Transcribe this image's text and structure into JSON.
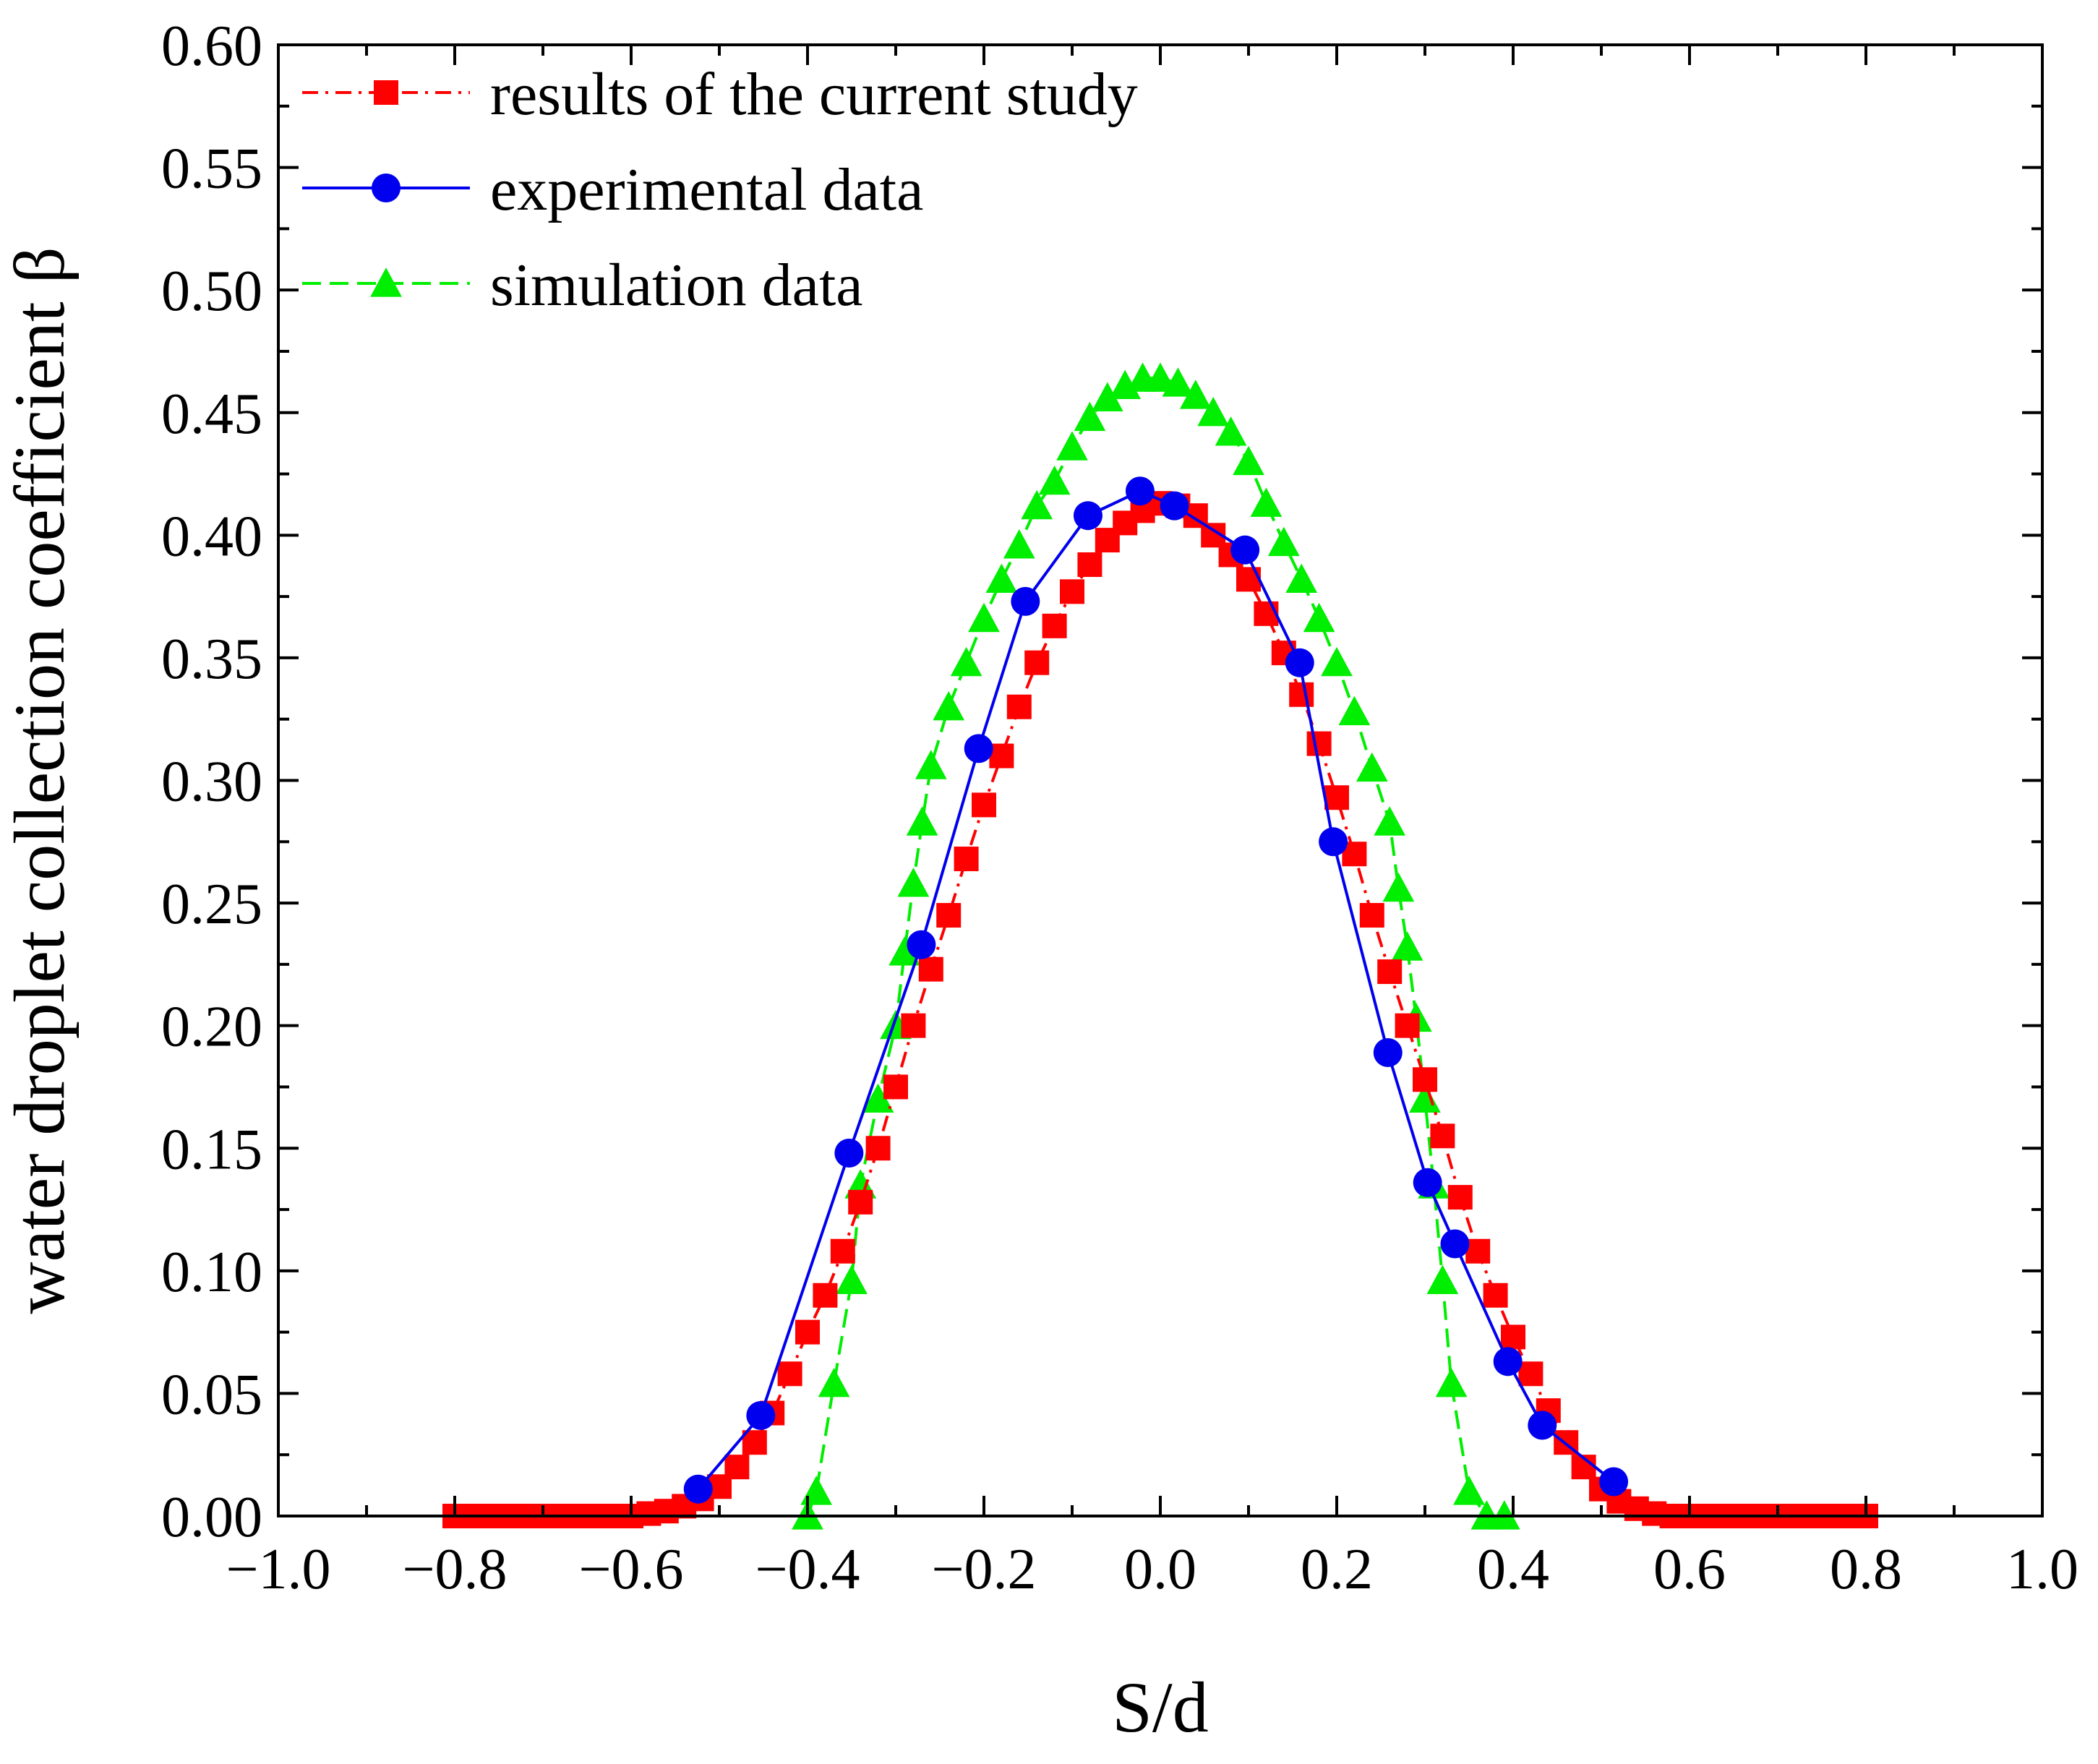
{
  "chart_data": {
    "type": "line",
    "title": "",
    "xlabel": "S/d",
    "ylabel": "water droplet collection coefficient β",
    "xlim": [
      -1.0,
      1.0
    ],
    "ylim": [
      0.0,
      0.6
    ],
    "xticks": [
      -1.0,
      -0.8,
      -0.6,
      -0.4,
      -0.2,
      0.0,
      0.2,
      0.4,
      0.6,
      0.8,
      1.0
    ],
    "xtick_labels": [
      "−1.0",
      "−0.8",
      "−0.6",
      "−0.4",
      "−0.2",
      "0.0",
      "0.2",
      "0.4",
      "0.6",
      "0.8",
      "1.0"
    ],
    "yticks": [
      0.0,
      0.05,
      0.1,
      0.15,
      0.2,
      0.25,
      0.3,
      0.35,
      0.4,
      0.45,
      0.5,
      0.55,
      0.6
    ],
    "ytick_labels": [
      "0.00",
      "0.05",
      "0.10",
      "0.15",
      "0.20",
      "0.25",
      "0.30",
      "0.35",
      "0.40",
      "0.45",
      "0.50",
      "0.55",
      "0.60"
    ],
    "grid": false,
    "legend_position": "top-left",
    "series": [
      {
        "name": "results of the current study",
        "color": "#ff0000",
        "marker": "square",
        "line_style": "dash-dot",
        "x": [
          -0.8,
          -0.78,
          -0.76,
          -0.74,
          -0.72,
          -0.7,
          -0.68,
          -0.66,
          -0.64,
          -0.62,
          -0.6,
          -0.58,
          -0.56,
          -0.54,
          -0.52,
          -0.5,
          -0.48,
          -0.46,
          -0.44,
          -0.42,
          -0.4,
          -0.38,
          -0.36,
          -0.34,
          -0.32,
          -0.3,
          -0.28,
          -0.26,
          -0.24,
          -0.22,
          -0.2,
          -0.18,
          -0.16,
          -0.14,
          -0.12,
          -0.1,
          -0.08,
          -0.06,
          -0.04,
          -0.02,
          0.0,
          0.02,
          0.04,
          0.06,
          0.08,
          0.1,
          0.12,
          0.14,
          0.16,
          0.18,
          0.2,
          0.22,
          0.24,
          0.26,
          0.28,
          0.3,
          0.32,
          0.34,
          0.36,
          0.38,
          0.4,
          0.42,
          0.44,
          0.46,
          0.48,
          0.5,
          0.52,
          0.54,
          0.56,
          0.58,
          0.6,
          0.62,
          0.64,
          0.66,
          0.68,
          0.7,
          0.72,
          0.74,
          0.76,
          0.78,
          0.8
        ],
        "y": [
          0.0,
          0.0,
          0.0,
          0.0,
          0.0,
          0.0,
          0.0,
          0.0,
          0.0,
          0.0,
          0.0,
          0.001,
          0.002,
          0.004,
          0.007,
          0.012,
          0.02,
          0.03,
          0.042,
          0.058,
          0.075,
          0.09,
          0.108,
          0.128,
          0.15,
          0.175,
          0.2,
          0.223,
          0.245,
          0.268,
          0.29,
          0.31,
          0.33,
          0.348,
          0.363,
          0.377,
          0.388,
          0.398,
          0.405,
          0.41,
          0.413,
          0.412,
          0.408,
          0.4,
          0.392,
          0.382,
          0.368,
          0.352,
          0.335,
          0.315,
          0.293,
          0.27,
          0.245,
          0.222,
          0.2,
          0.178,
          0.155,
          0.13,
          0.108,
          0.09,
          0.073,
          0.058,
          0.043,
          0.03,
          0.02,
          0.011,
          0.006,
          0.003,
          0.001,
          0.0,
          0.0,
          0.0,
          0.0,
          0.0,
          0.0,
          0.0,
          0.0,
          0.0,
          0.0,
          0.0,
          0.0
        ]
      },
      {
        "name": "experimental data",
        "color": "#0000ee",
        "marker": "circle",
        "line_style": "solid",
        "x": [
          -0.524,
          -0.453,
          -0.353,
          -0.271,
          -0.206,
          -0.153,
          -0.082,
          -0.023,
          0.016,
          0.096,
          0.158,
          0.196,
          0.258,
          0.303,
          0.334,
          0.394,
          0.433,
          0.514
        ],
        "y": [
          0.011,
          0.041,
          0.148,
          0.233,
          0.313,
          0.373,
          0.408,
          0.418,
          0.412,
          0.394,
          0.348,
          0.275,
          0.189,
          0.136,
          0.111,
          0.063,
          0.037,
          0.014
        ]
      },
      {
        "name": "simulation data",
        "color": "#00ee00",
        "marker": "triangle",
        "line_style": "dash",
        "x": [
          -0.4,
          -0.39,
          -0.37,
          -0.35,
          -0.34,
          -0.32,
          -0.3,
          -0.29,
          -0.28,
          -0.27,
          -0.26,
          -0.24,
          -0.22,
          -0.2,
          -0.18,
          -0.16,
          -0.14,
          -0.12,
          -0.1,
          -0.08,
          -0.06,
          -0.04,
          -0.02,
          0.0,
          0.02,
          0.04,
          0.06,
          0.08,
          0.1,
          0.12,
          0.14,
          0.16,
          0.18,
          0.2,
          0.22,
          0.24,
          0.26,
          0.27,
          0.28,
          0.29,
          0.3,
          0.31,
          0.32,
          0.33,
          0.35,
          0.37,
          0.39
        ],
        "y": [
          0.0,
          0.01,
          0.054,
          0.096,
          0.135,
          0.17,
          0.2,
          0.23,
          0.258,
          0.283,
          0.306,
          0.33,
          0.348,
          0.366,
          0.382,
          0.396,
          0.412,
          0.422,
          0.436,
          0.448,
          0.456,
          0.461,
          0.464,
          0.464,
          0.462,
          0.457,
          0.45,
          0.442,
          0.43,
          0.413,
          0.397,
          0.382,
          0.366,
          0.348,
          0.328,
          0.305,
          0.283,
          0.256,
          0.232,
          0.203,
          0.17,
          0.135,
          0.096,
          0.054,
          0.01,
          0.0,
          0.0
        ]
      }
    ]
  }
}
